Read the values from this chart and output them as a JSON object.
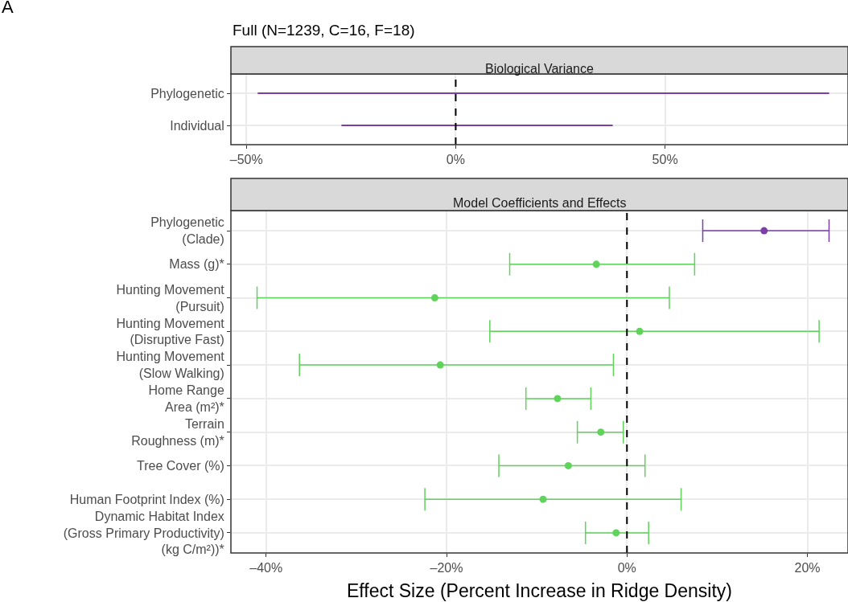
{
  "chart_data": [
    {
      "type": "bar",
      "orientation": "horizontal",
      "title": "Full (N=1239, C=16, F=18)",
      "subtitle": "Biological Variance",
      "annotations": [
        "A"
      ],
      "categories": [
        "Phylogenetic",
        "Individual"
      ],
      "base": [
        -47.3,
        -27.3
      ],
      "values": [
        136.5,
        64.8
      ],
      "colors": [
        "#7b3fa6",
        "#7b3fa6"
      ],
      "xlim": [
        -53.7,
        93.7
      ],
      "xticks": [
        {
          "value": -50,
          "label": "–50%"
        },
        {
          "value": 0,
          "label": "0%"
        },
        {
          "value": 50,
          "label": "50%"
        }
      ],
      "ref_lines": [
        {
          "axis": "x",
          "value": 0,
          "line_style": "dashed",
          "color": "#000000"
        }
      ],
      "grid": true
    },
    {
      "type": "scatter",
      "orientation": "horizontal",
      "title": "Model Coefficients and Effects",
      "xlabel": "Effect Size (Percent Increase in Ridge Density)",
      "categories": [
        "Phylogenetic\n(Clade)",
        "Mass (g)*",
        "Hunting Movement\n(Pursuit)",
        "Hunting Movement\n(Disruptive Fast)",
        "Hunting Movement\n(Slow Walking)",
        "Home Range\nArea (m²)*",
        "Terrain\nRoughness (m)*",
        "Tree Cover (%)",
        "Human Footprint Index (%)",
        "Dynamic Habitat Index\n(Gross Primary Productivity)\n(kg C/m²))*"
      ],
      "values": [
        15.2,
        -3.4,
        -21.3,
        1.4,
        -20.7,
        -7.7,
        -2.9,
        -6.5,
        -9.3,
        -1.2
      ],
      "errors": [
        [
          8.4,
          22.4
        ],
        [
          -13.0,
          7.5
        ],
        [
          -41.0,
          4.7
        ],
        [
          -15.2,
          21.3
        ],
        [
          -36.3,
          -1.5
        ],
        [
          -11.2,
          -4.0
        ],
        [
          -5.5,
          -0.4
        ],
        [
          -14.2,
          2.0
        ],
        [
          -22.4,
          6.0
        ],
        [
          -4.6,
          2.4
        ]
      ],
      "colors": [
        "#7b3fa6",
        "#5fd35a",
        "#5fd35a",
        "#5fd35a",
        "#5fd35a",
        "#5fd35a",
        "#5fd35a",
        "#5fd35a",
        "#5fd35a",
        "#5fd35a"
      ],
      "marker": "circle",
      "xlim": [
        -43.9,
        24.5
      ],
      "xticks": [
        {
          "value": -40,
          "label": "–40%"
        },
        {
          "value": -20,
          "label": "–20%"
        },
        {
          "value": 0,
          "label": "0%"
        },
        {
          "value": 20,
          "label": "20%"
        }
      ],
      "ref_lines": [
        {
          "axis": "x",
          "value": 0,
          "line_style": "dashed",
          "color": "#000000"
        }
      ],
      "grid": true
    }
  ]
}
